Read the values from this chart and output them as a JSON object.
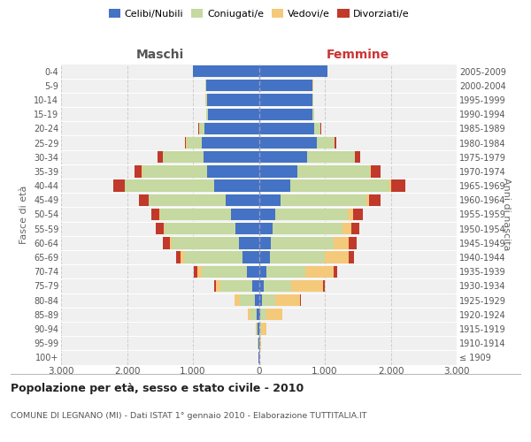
{
  "age_groups": [
    "100+",
    "95-99",
    "90-94",
    "85-89",
    "80-84",
    "75-79",
    "70-74",
    "65-69",
    "60-64",
    "55-59",
    "50-54",
    "45-49",
    "40-44",
    "35-39",
    "30-34",
    "25-29",
    "20-24",
    "15-19",
    "10-14",
    "5-9",
    "0-4"
  ],
  "birth_years": [
    "≤ 1909",
    "1910-1914",
    "1915-1919",
    "1920-1924",
    "1925-1929",
    "1930-1934",
    "1935-1939",
    "1940-1944",
    "1945-1949",
    "1950-1954",
    "1955-1959",
    "1960-1964",
    "1965-1969",
    "1970-1974",
    "1975-1979",
    "1980-1984",
    "1985-1989",
    "1990-1994",
    "1995-1999",
    "2000-2004",
    "2005-2009"
  ],
  "maschi_celibi": [
    5,
    8,
    15,
    35,
    60,
    100,
    180,
    250,
    300,
    350,
    420,
    500,
    680,
    790,
    840,
    870,
    820,
    770,
    790,
    800,
    1000
  ],
  "maschi_coniugati": [
    4,
    8,
    25,
    90,
    230,
    480,
    680,
    880,
    1020,
    1080,
    1080,
    1170,
    1350,
    980,
    620,
    230,
    90,
    25,
    15,
    8,
    4
  ],
  "maschi_vedovi": [
    2,
    4,
    8,
    45,
    75,
    75,
    75,
    55,
    25,
    15,
    8,
    4,
    4,
    4,
    2,
    2,
    2,
    1,
    1,
    1,
    1
  ],
  "maschi_divorziati": [
    1,
    2,
    2,
    4,
    8,
    18,
    55,
    75,
    115,
    125,
    125,
    145,
    175,
    115,
    75,
    25,
    8,
    4,
    2,
    1,
    1
  ],
  "femmine_celibi": [
    4,
    4,
    12,
    22,
    45,
    70,
    120,
    165,
    185,
    205,
    255,
    330,
    480,
    580,
    730,
    880,
    840,
    810,
    810,
    810,
    1040
  ],
  "femmine_coniugati": [
    4,
    8,
    25,
    90,
    200,
    420,
    580,
    840,
    950,
    1060,
    1100,
    1300,
    1500,
    1100,
    720,
    270,
    90,
    25,
    12,
    8,
    4
  ],
  "femmine_vedovi": [
    8,
    25,
    75,
    240,
    380,
    480,
    430,
    360,
    230,
    140,
    70,
    45,
    25,
    12,
    8,
    4,
    4,
    1,
    1,
    1,
    1
  ],
  "femmine_divorziati": [
    1,
    2,
    4,
    8,
    12,
    25,
    55,
    75,
    120,
    120,
    150,
    170,
    210,
    150,
    75,
    25,
    8,
    4,
    2,
    1,
    1
  ],
  "color_celibi": "#4472c4",
  "color_coniugati": "#c5d9a0",
  "color_vedovi": "#f5c97a",
  "color_divorziati": "#c0392b",
  "xlim": 3000,
  "title": "Popolazione per età, sesso e stato civile - 2010",
  "subtitle": "COMUNE DI LEGNANO (MI) - Dati ISTAT 1° gennaio 2010 - Elaborazione TUTTITALIA.IT",
  "ylabel_left": "Fasce di età",
  "ylabel_right": "Anni di nascita",
  "xlabel_maschi": "Maschi",
  "xlabel_femmine": "Femmine",
  "bg_color": "#ffffff",
  "plot_bg": "#f0f0f0",
  "grid_color": "#cccccc",
  "maschi_color": "#555555",
  "femmine_color": "#cc3333"
}
